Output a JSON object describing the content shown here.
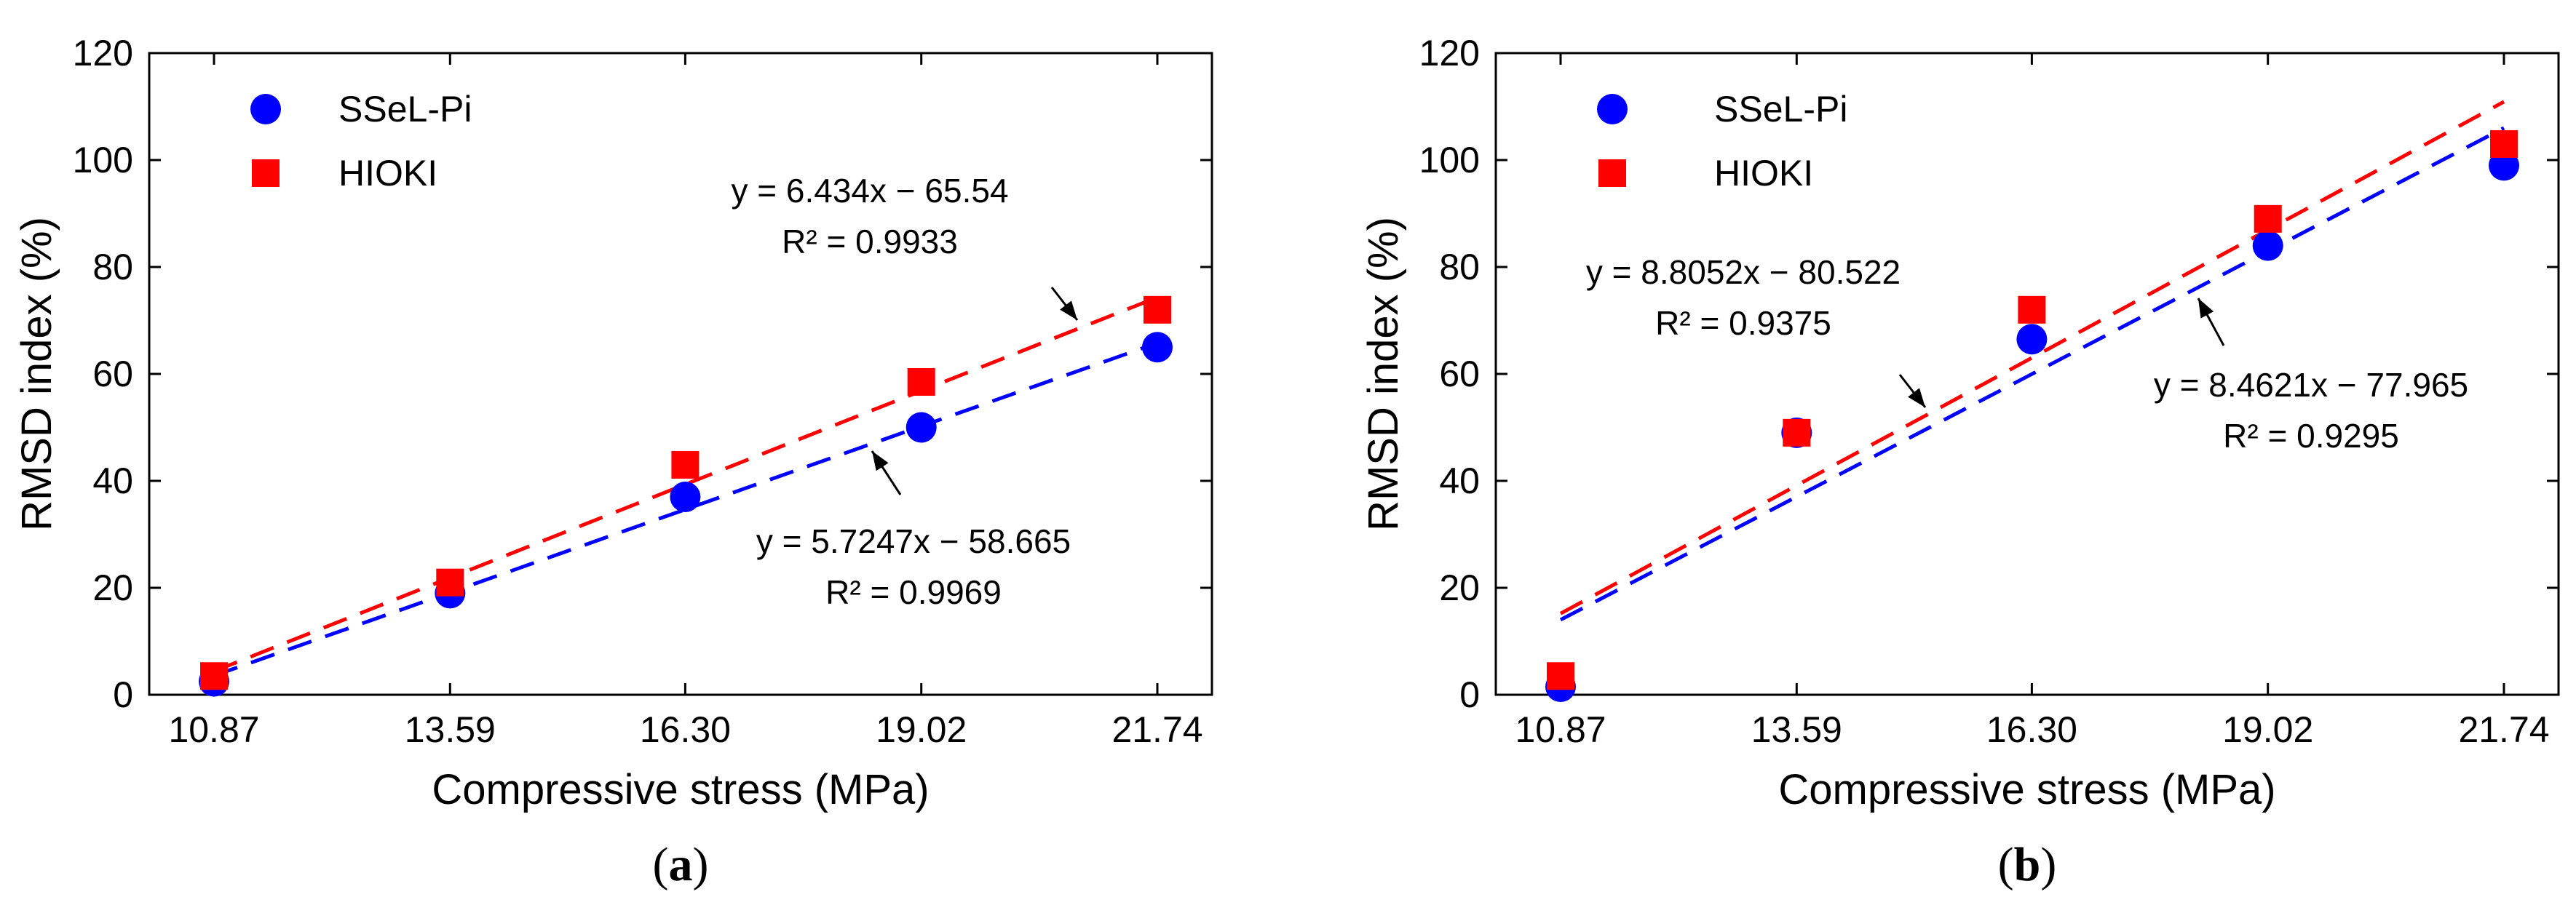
{
  "chart_data": [
    {
      "type": "scatter",
      "panel_label": {
        "open": "(",
        "letter": "a",
        "close": ")"
      },
      "title": "",
      "xlabel": "Compressive stress (MPa)",
      "ylabel": "RMSD index (%)",
      "x": [
        10.87,
        13.59,
        16.3,
        19.02,
        21.74
      ],
      "x_tick_labels": [
        "10.87",
        "13.59",
        "16.30",
        "19.02",
        "21.74"
      ],
      "ylim": [
        0,
        120
      ],
      "y_ticks": [
        0,
        20,
        40,
        60,
        80,
        100,
        120
      ],
      "legend_position": "top-left",
      "series": [
        {
          "name": "SSeL-Pi",
          "marker": "circle",
          "color": "#0000ff",
          "values": [
            2.5,
            19,
            37,
            50,
            65
          ],
          "trendline": {
            "slope": 5.7247,
            "intercept": -58.665,
            "equation": "y = 5.7247x − 58.665",
            "r2": "R² = 0.9969"
          }
        },
        {
          "name": "HIOKI",
          "marker": "square",
          "color": "#ff0000",
          "values": [
            3.5,
            21,
            43,
            58.5,
            72
          ],
          "trendline": {
            "slope": 6.434,
            "intercept": -65.54,
            "equation": "y = 6.434x − 65.54",
            "r2": "R² = 0.9933"
          }
        }
      ]
    },
    {
      "type": "scatter",
      "panel_label": {
        "open": "(",
        "letter": "b",
        "close": ")"
      },
      "title": "",
      "xlabel": "Compressive stress (MPa)",
      "ylabel": "RMSD index (%)",
      "x": [
        10.87,
        13.59,
        16.3,
        19.02,
        21.74
      ],
      "x_tick_labels": [
        "10.87",
        "13.59",
        "16.30",
        "19.02",
        "21.74"
      ],
      "ylim": [
        0,
        120
      ],
      "y_ticks": [
        0,
        20,
        40,
        60,
        80,
        100,
        120
      ],
      "legend_position": "top-left",
      "series": [
        {
          "name": "SSeL-Pi",
          "marker": "circle",
          "color": "#0000ff",
          "values": [
            1.5,
            49,
            66.5,
            84,
            99
          ],
          "trendline": {
            "slope": 8.4621,
            "intercept": -77.965,
            "equation": "y = 8.4621x − 77.965",
            "r2": "R² = 0.9295"
          }
        },
        {
          "name": "HIOKI",
          "marker": "square",
          "color": "#ff0000",
          "values": [
            3.5,
            49,
            72,
            89,
            103
          ],
          "trendline": {
            "slope": 8.8052,
            "intercept": -80.522,
            "equation": "y = 8.8052x − 80.522",
            "r2": "R² = 0.9375"
          }
        }
      ]
    }
  ]
}
